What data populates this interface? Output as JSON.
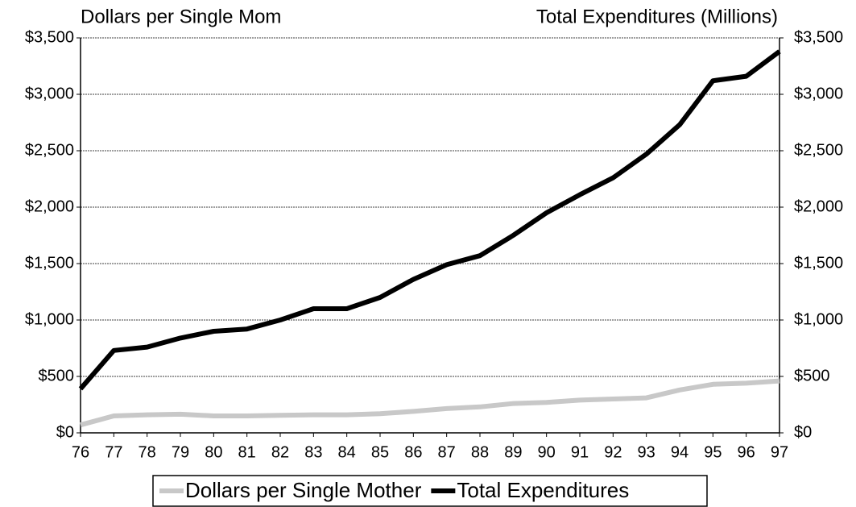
{
  "chart_data": {
    "type": "line",
    "y_title": "Dollars per Single Mom",
    "y2_title": "Total Expenditures (Millions)",
    "categories": [
      "76",
      "77",
      "78",
      "79",
      "80",
      "81",
      "82",
      "83",
      "84",
      "85",
      "86",
      "87",
      "88",
      "89",
      "90",
      "91",
      "92",
      "93",
      "94",
      "95",
      "96",
      "97"
    ],
    "series": [
      {
        "name": "Dollars per Single Mother",
        "color": "#c8c8c8",
        "values": [
          70,
          150,
          160,
          165,
          150,
          150,
          155,
          160,
          160,
          170,
          190,
          215,
          230,
          260,
          270,
          290,
          300,
          310,
          380,
          430,
          440,
          460
        ]
      },
      {
        "name": "Total Expenditures",
        "color": "#000000",
        "axis": "y2",
        "values": [
          390,
          730,
          760,
          840,
          900,
          920,
          1000,
          1100,
          1100,
          1200,
          1360,
          1490,
          1570,
          1750,
          1950,
          2110,
          2260,
          2470,
          2730,
          3120,
          3160,
          3380
        ]
      }
    ],
    "ylim": [
      0,
      3500
    ],
    "yticks": [
      {
        "value": 0,
        "label": "$0"
      },
      {
        "value": 500,
        "label": "$500"
      },
      {
        "value": 1000,
        "label": "$1,000"
      },
      {
        "value": 1500,
        "label": "$1,500"
      },
      {
        "value": 2000,
        "label": "$2,000"
      },
      {
        "value": 2500,
        "label": "$2,500"
      },
      {
        "value": 3000,
        "label": "$3,000"
      },
      {
        "value": 3500,
        "label": "$3,500"
      }
    ],
    "y2lim": [
      0,
      3500
    ],
    "y2ticks": [
      {
        "value": 0,
        "label": "$0"
      },
      {
        "value": 500,
        "label": "$500"
      },
      {
        "value": 1000,
        "label": "$1,000"
      },
      {
        "value": 1500,
        "label": "$1,500"
      },
      {
        "value": 2000,
        "label": "$2,000"
      },
      {
        "value": 2500,
        "label": "$2,500"
      },
      {
        "value": 3000,
        "label": "$3,000"
      },
      {
        "value": 3500,
        "label": "$3,500"
      }
    ],
    "grid": true,
    "legend": "bottom"
  }
}
